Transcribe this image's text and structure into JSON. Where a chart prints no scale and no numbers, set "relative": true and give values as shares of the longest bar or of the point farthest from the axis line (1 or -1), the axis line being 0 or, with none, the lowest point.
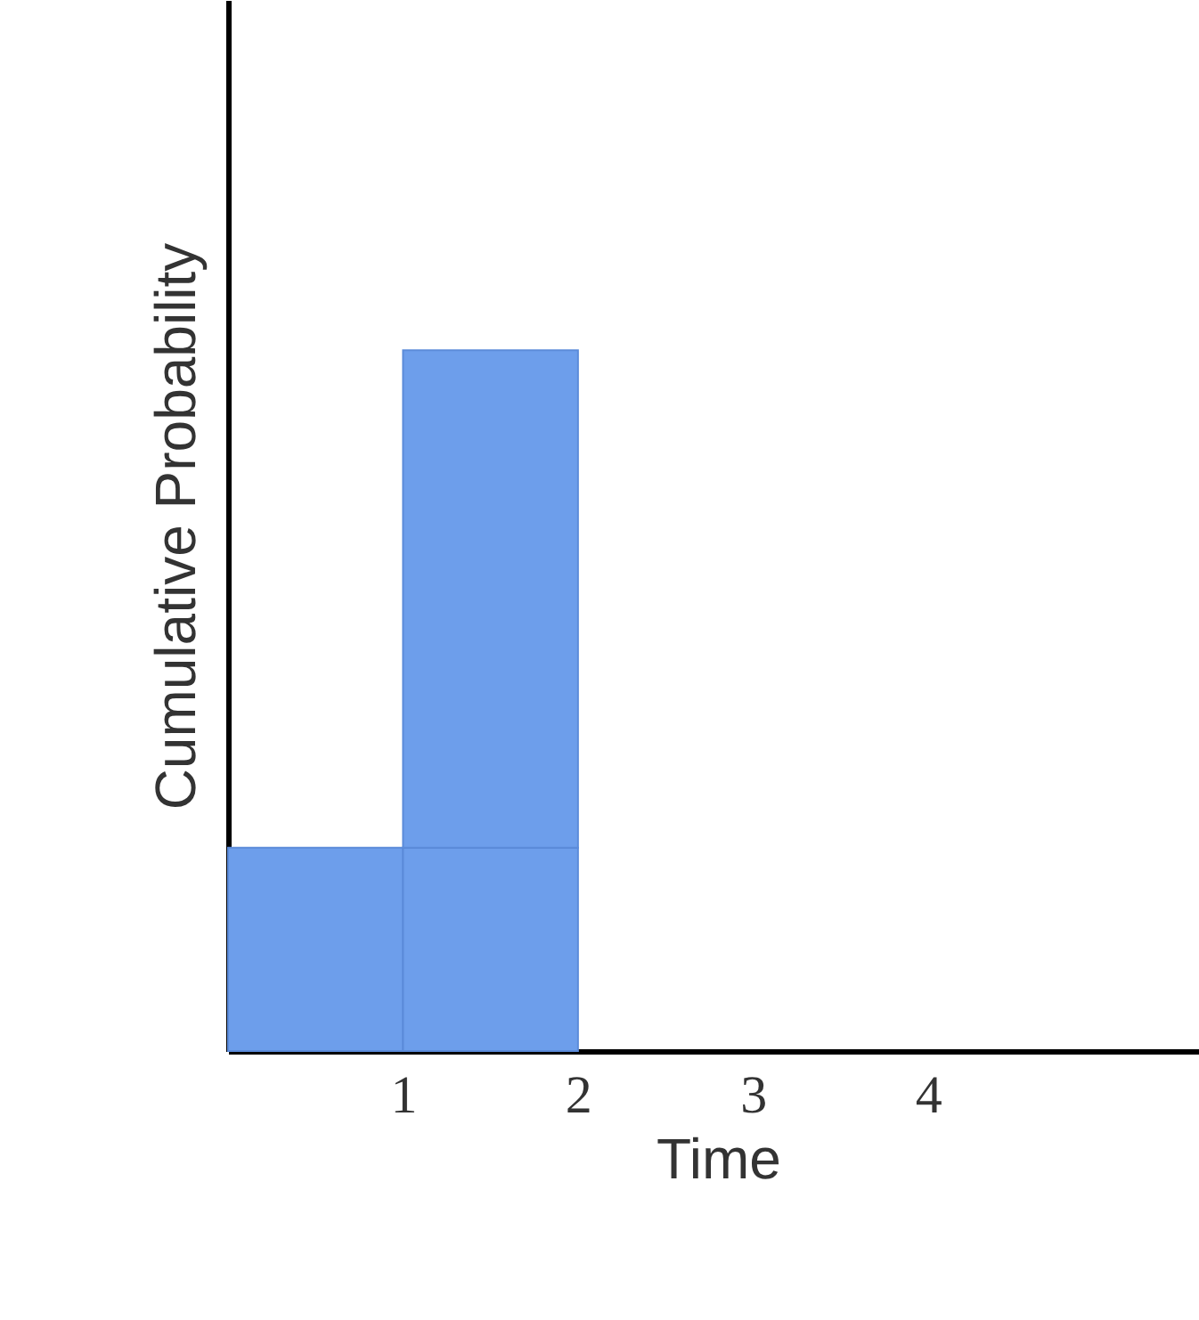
{
  "chart_data": {
    "type": "bar",
    "xlabel": "Time",
    "ylabel": "Cumulative Probability",
    "relative": true,
    "stacked": true,
    "x": [
      0.5,
      1.5
    ],
    "xlim": [
      0,
      5.6
    ],
    "xticks": [
      1,
      2,
      3,
      4
    ],
    "grid": false,
    "series": [
      {
        "color": "#6d9eeb",
        "values": [
          0.29,
          0.29
        ]
      },
      {
        "color": "#6d9eeb",
        "values": [
          0,
          0.71
        ]
      }
    ]
  }
}
